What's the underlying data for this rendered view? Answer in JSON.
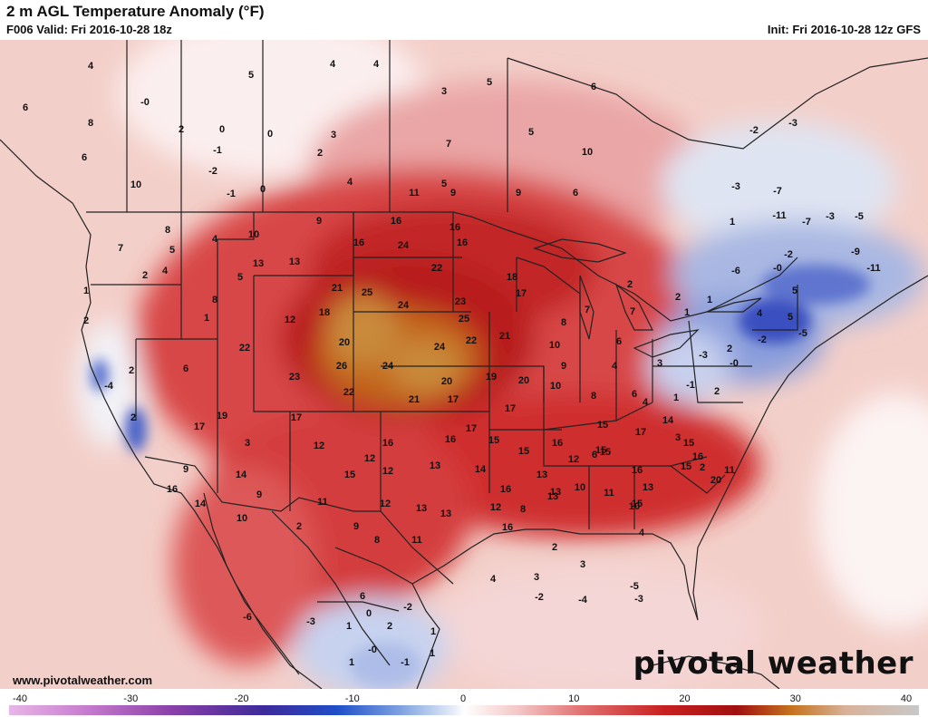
{
  "header": {
    "title": "2 m AGL Temperature Anomaly (°F)",
    "valid": "F006 Valid: Fri 2016-10-28 18z",
    "init": "Init: Fri 2016-10-28 12z GFS"
  },
  "footer": {
    "website": "www.pivotalweather.com",
    "brand": "pivotal weather"
  },
  "colorbar": {
    "ticks": [
      "-40",
      "-30",
      "-20",
      "-10",
      "0",
      "10",
      "20",
      "30",
      "40"
    ],
    "min": -40,
    "max": 40
  },
  "map": {
    "anomaly_labels": [
      {
        "text": "4"
      },
      {
        "text": "6"
      },
      {
        "text": "8"
      },
      {
        "text": "6"
      },
      {
        "text": "-0"
      },
      {
        "text": "5"
      },
      {
        "text": "2"
      },
      {
        "text": "0"
      },
      {
        "text": "-1"
      },
      {
        "text": "0"
      },
      {
        "text": "-2"
      },
      {
        "text": "2"
      },
      {
        "text": "3"
      },
      {
        "text": "-1"
      },
      {
        "text": "0"
      },
      {
        "text": "10"
      },
      {
        "text": "4"
      },
      {
        "text": "4"
      },
      {
        "text": "4"
      },
      {
        "text": "3"
      },
      {
        "text": "5"
      },
      {
        "text": "5"
      },
      {
        "text": "7"
      },
      {
        "text": "5"
      },
      {
        "text": "6"
      },
      {
        "text": "10"
      },
      {
        "text": "11"
      },
      {
        "text": "9"
      },
      {
        "text": "9"
      },
      {
        "text": "6"
      },
      {
        "text": "16"
      },
      {
        "text": "16"
      },
      {
        "text": "16"
      },
      {
        "text": "16"
      },
      {
        "text": "24"
      },
      {
        "text": "22"
      },
      {
        "text": "9"
      },
      {
        "text": "10"
      },
      {
        "text": "13"
      },
      {
        "text": "13"
      },
      {
        "text": "8"
      },
      {
        "text": "7"
      },
      {
        "text": "5"
      },
      {
        "text": "4"
      },
      {
        "text": "4"
      },
      {
        "text": "1"
      },
      {
        "text": "2"
      },
      {
        "text": "5"
      },
      {
        "text": "8"
      },
      {
        "text": "1"
      },
      {
        "text": "2"
      },
      {
        "text": "21"
      },
      {
        "text": "25"
      },
      {
        "text": "24"
      },
      {
        "text": "23"
      },
      {
        "text": "25"
      },
      {
        "text": "18"
      },
      {
        "text": "17"
      },
      {
        "text": "12"
      },
      {
        "text": "18"
      },
      {
        "text": "20"
      },
      {
        "text": "24"
      },
      {
        "text": "22"
      },
      {
        "text": "21"
      },
      {
        "text": "8"
      },
      {
        "text": "7"
      },
      {
        "text": "7"
      },
      {
        "text": "6"
      },
      {
        "text": "2"
      },
      {
        "text": "2"
      },
      {
        "text": "22"
      },
      {
        "text": "26"
      },
      {
        "text": "24"
      },
      {
        "text": "10"
      },
      {
        "text": "6"
      },
      {
        "text": "23"
      },
      {
        "text": "20"
      },
      {
        "text": "19"
      },
      {
        "text": "20"
      },
      {
        "text": "9"
      },
      {
        "text": "4"
      },
      {
        "text": "3"
      },
      {
        "text": "22"
      },
      {
        "text": "21"
      },
      {
        "text": "17"
      },
      {
        "text": "17"
      },
      {
        "text": "10"
      },
      {
        "text": "8"
      },
      {
        "text": "6"
      },
      {
        "text": "-4"
      },
      {
        "text": "2"
      },
      {
        "text": "17"
      },
      {
        "text": "19"
      },
      {
        "text": "17"
      },
      {
        "text": "17"
      },
      {
        "text": "15"
      },
      {
        "text": "15"
      },
      {
        "text": "14"
      },
      {
        "text": "2"
      },
      {
        "text": "3"
      },
      {
        "text": "12"
      },
      {
        "text": "16"
      },
      {
        "text": "16"
      },
      {
        "text": "15"
      },
      {
        "text": "16"
      },
      {
        "text": "15"
      },
      {
        "text": "17"
      },
      {
        "text": "15"
      },
      {
        "text": "11"
      },
      {
        "text": "9"
      },
      {
        "text": "14"
      },
      {
        "text": "12"
      },
      {
        "text": "12"
      },
      {
        "text": "13"
      },
      {
        "text": "14"
      },
      {
        "text": "16"
      },
      {
        "text": "13"
      },
      {
        "text": "12"
      },
      {
        "text": "13"
      },
      {
        "text": "15"
      },
      {
        "text": "16"
      },
      {
        "text": "15"
      },
      {
        "text": "20"
      },
      {
        "text": "16"
      },
      {
        "text": "15"
      },
      {
        "text": "12"
      },
      {
        "text": "13"
      },
      {
        "text": "16"
      },
      {
        "text": "10"
      },
      {
        "text": "11"
      },
      {
        "text": "13"
      },
      {
        "text": "15"
      },
      {
        "text": "16"
      },
      {
        "text": "14"
      },
      {
        "text": "9"
      },
      {
        "text": "11"
      },
      {
        "text": "10"
      },
      {
        "text": "2"
      },
      {
        "text": "8"
      },
      {
        "text": "9"
      },
      {
        "text": "13"
      },
      {
        "text": "12"
      },
      {
        "text": "8"
      },
      {
        "text": "13"
      },
      {
        "text": "6"
      },
      {
        "text": "3"
      },
      {
        "text": "3"
      },
      {
        "text": "4"
      },
      {
        "text": "2"
      },
      {
        "text": "4"
      },
      {
        "text": "11"
      },
      {
        "text": "10"
      },
      {
        "text": "-2"
      },
      {
        "text": "-4"
      },
      {
        "text": "-3"
      },
      {
        "text": "-5"
      },
      {
        "text": "-6"
      },
      {
        "text": "-3"
      },
      {
        "text": "6"
      },
      {
        "text": "2"
      },
      {
        "text": "1"
      },
      {
        "text": "-0"
      },
      {
        "text": "-1"
      },
      {
        "text": "1"
      },
      {
        "text": "0"
      },
      {
        "text": "1"
      },
      {
        "text": "1"
      },
      {
        "text": "-2"
      },
      {
        "text": "-2"
      },
      {
        "text": "-3"
      },
      {
        "text": "-3"
      },
      {
        "text": "-7"
      },
      {
        "text": "-11"
      },
      {
        "text": "-7"
      },
      {
        "text": "-3"
      },
      {
        "text": "-5"
      },
      {
        "text": "-11"
      },
      {
        "text": "-9"
      },
      {
        "text": "-6"
      },
      {
        "text": "-0"
      },
      {
        "text": "1"
      },
      {
        "text": "4"
      },
      {
        "text": "5"
      },
      {
        "text": "5"
      },
      {
        "text": "1"
      },
      {
        "text": "2"
      },
      {
        "text": "-2"
      },
      {
        "text": "-5"
      },
      {
        "text": "-3"
      },
      {
        "text": "-0"
      },
      {
        "text": "-1"
      },
      {
        "text": "1"
      },
      {
        "text": "2"
      },
      {
        "text": "4"
      },
      {
        "text": "3"
      },
      {
        "text": "2"
      },
      {
        "text": "1"
      },
      {
        "text": "-2"
      }
    ]
  }
}
